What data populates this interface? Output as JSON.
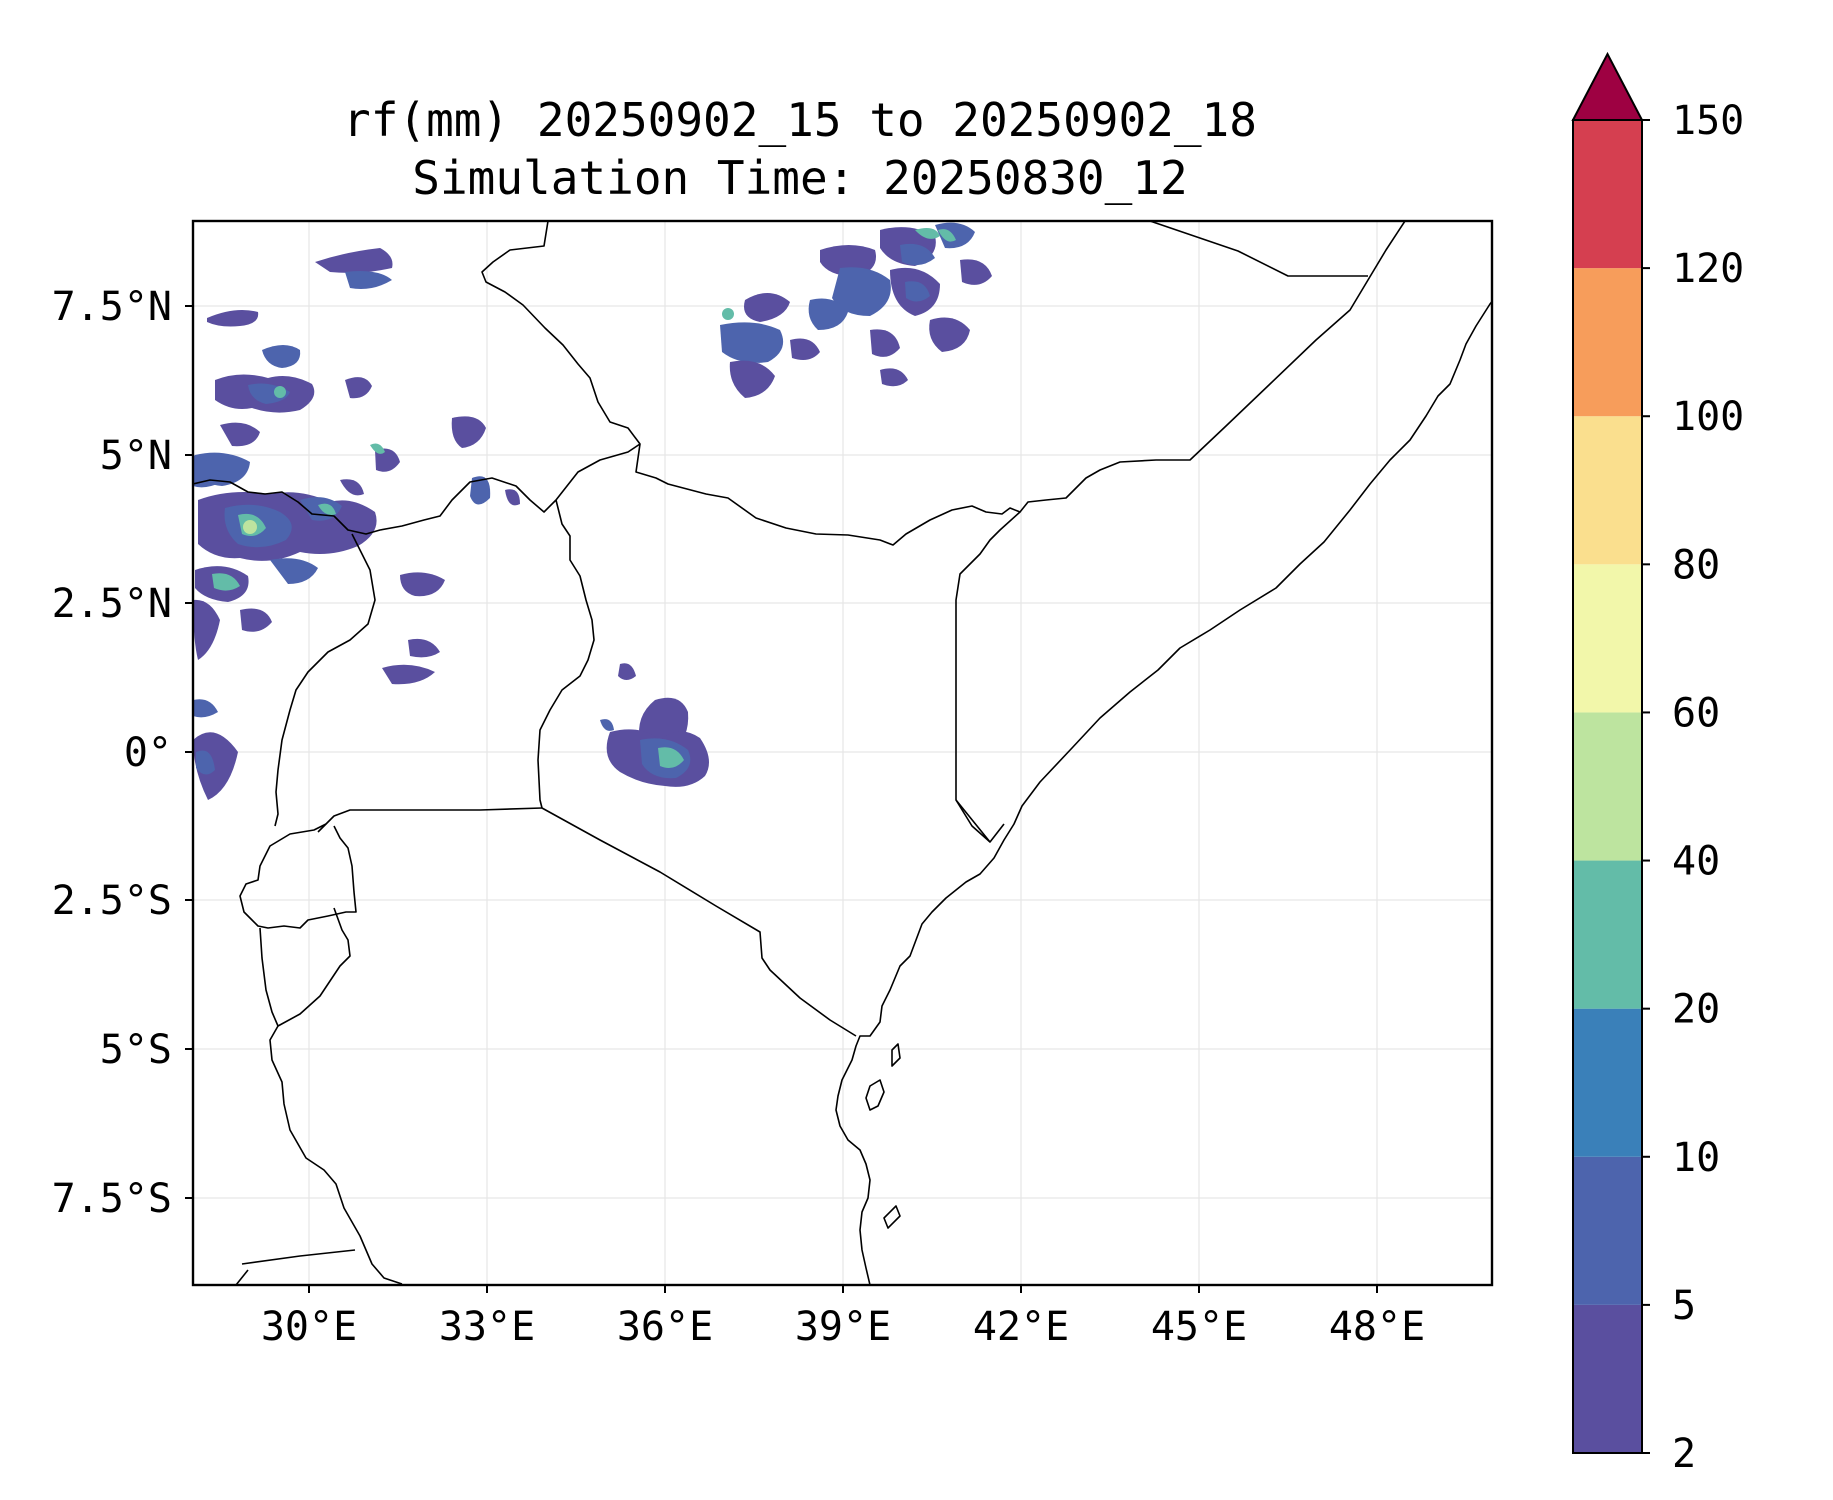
{
  "map": {
    "title_line1": "rf(mm) 20250902_15 to 20250902_18",
    "title_line2": "Simulation Time: 20250830_12",
    "lon_ticks": [
      "30°E",
      "33°E",
      "36°E",
      "39°E",
      "42°E",
      "45°E",
      "48°E"
    ],
    "lat_ticks": [
      "7.5°N",
      "5°N",
      "2.5°N",
      "0°",
      "2.5°S",
      "5°S",
      "7.5°S"
    ]
  },
  "colorbar": {
    "labels": [
      "2",
      "5",
      "10",
      "20",
      "40",
      "60",
      "80",
      "100",
      "120",
      "150"
    ],
    "colors": [
      "#5a4f9f",
      "#4d64ad",
      "#3a80b9",
      "#63bca8",
      "#bde49f",
      "#f2f7aa",
      "#fadf8e",
      "#f79d5b",
      "#d53f50"
    ],
    "extend_color": "#9e0142"
  },
  "colors": {
    "rain_light": "#5a4f9f",
    "rain_medium": "#4d64ad",
    "rain_heavy": "#63bca8",
    "rain_peak": "#bde49f"
  }
}
